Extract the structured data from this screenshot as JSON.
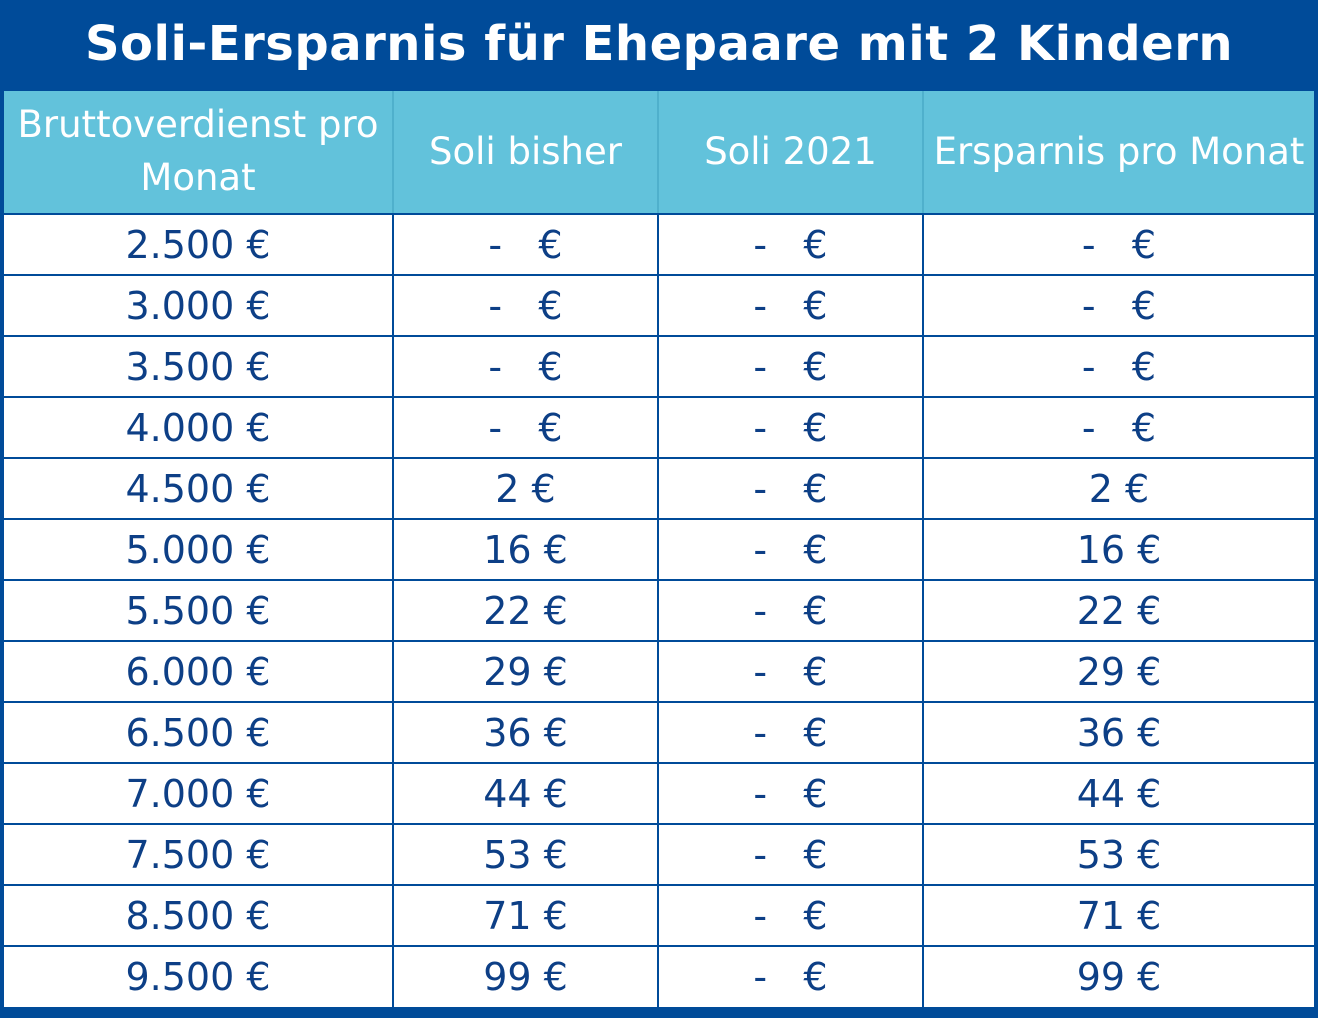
{
  "chart_data": {
    "type": "table",
    "title": "Soli-Ersparnis für Ehepaare mit 2 Kindern",
    "columns": [
      "Bruttoverdienst pro Monat",
      "Soli bisher",
      "Soli 2021",
      "Ersparnis pro Monat"
    ],
    "rows": [
      [
        "2.500 €",
        "-   €",
        "-   €",
        "-   €"
      ],
      [
        "3.000 €",
        "-   €",
        "-   €",
        "-   €"
      ],
      [
        "3.500 €",
        "-   €",
        "-   €",
        "-   €"
      ],
      [
        "4.000 €",
        "-   €",
        "-   €",
        "-   €"
      ],
      [
        "4.500 €",
        "2 €",
        "-   €",
        "2 €"
      ],
      [
        "5.000 €",
        "16 €",
        "-   €",
        "16 €"
      ],
      [
        "5.500 €",
        "22 €",
        "-   €",
        "22 €"
      ],
      [
        "6.000 €",
        "29 €",
        "-   €",
        "29 €"
      ],
      [
        "6.500 €",
        "36 €",
        "-   €",
        "36 €"
      ],
      [
        "7.000 €",
        "44 €",
        "-   €",
        "44 €"
      ],
      [
        "7.500 €",
        "53 €",
        "-   €",
        "53 €"
      ],
      [
        "8.500 €",
        "71 €",
        "-   €",
        "71 €"
      ],
      [
        "9.500 €",
        "99 €",
        "-   €",
        "99 €"
      ]
    ]
  },
  "colors": {
    "title_background": "#004b99",
    "header_background": "#62c2db",
    "header_text": "#ffffff",
    "cell_text": "#0d3f86",
    "grid_lines": "#004b99"
  }
}
